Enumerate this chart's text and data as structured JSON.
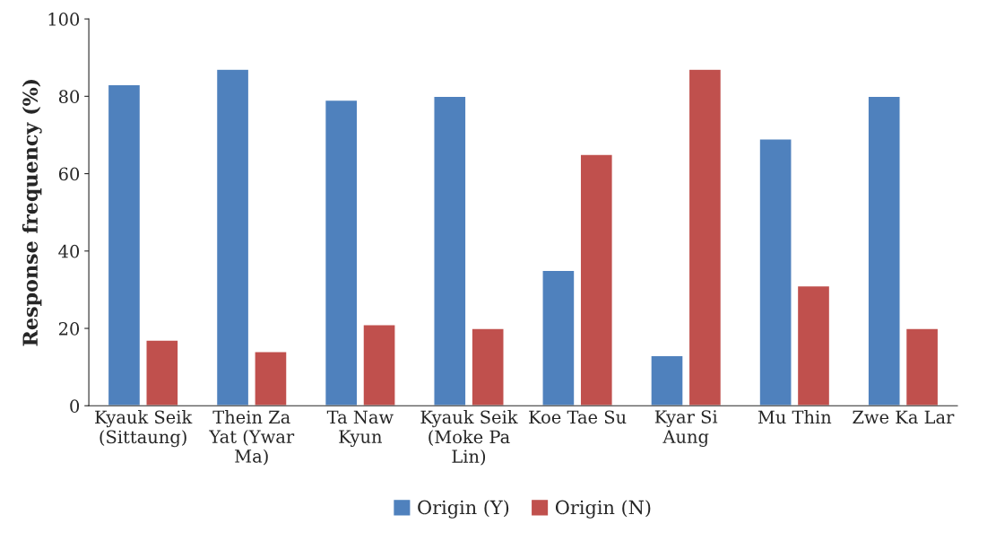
{
  "chart_data": {
    "type": "bar",
    "ylabel": "Response frequency (%)",
    "categories": [
      "Kyauk Seik\n(Sittaung)",
      "Thein Za\nYat (Ywar\nMa)",
      "Ta Naw\nKyun",
      "Kyauk Seik\n(Moke Pa\nLin)",
      "Koe Tae Su",
      "Kyar Si\nAung",
      "Mu Thin",
      "Zwe Ka Lar"
    ],
    "series": [
      {
        "name": "Origin (Y)",
        "color": "#4f81bd",
        "values": [
          83,
          87,
          79,
          80,
          35,
          13,
          69,
          80
        ]
      },
      {
        "name": "Origin (N)",
        "color": "#c0504d",
        "values": [
          17,
          14,
          21,
          20,
          65,
          87,
          31,
          20
        ]
      }
    ],
    "ylim": [
      0,
      100
    ],
    "yticks": [
      0,
      20,
      40,
      60,
      80,
      100
    ],
    "grid": false,
    "legend": "bottom"
  }
}
